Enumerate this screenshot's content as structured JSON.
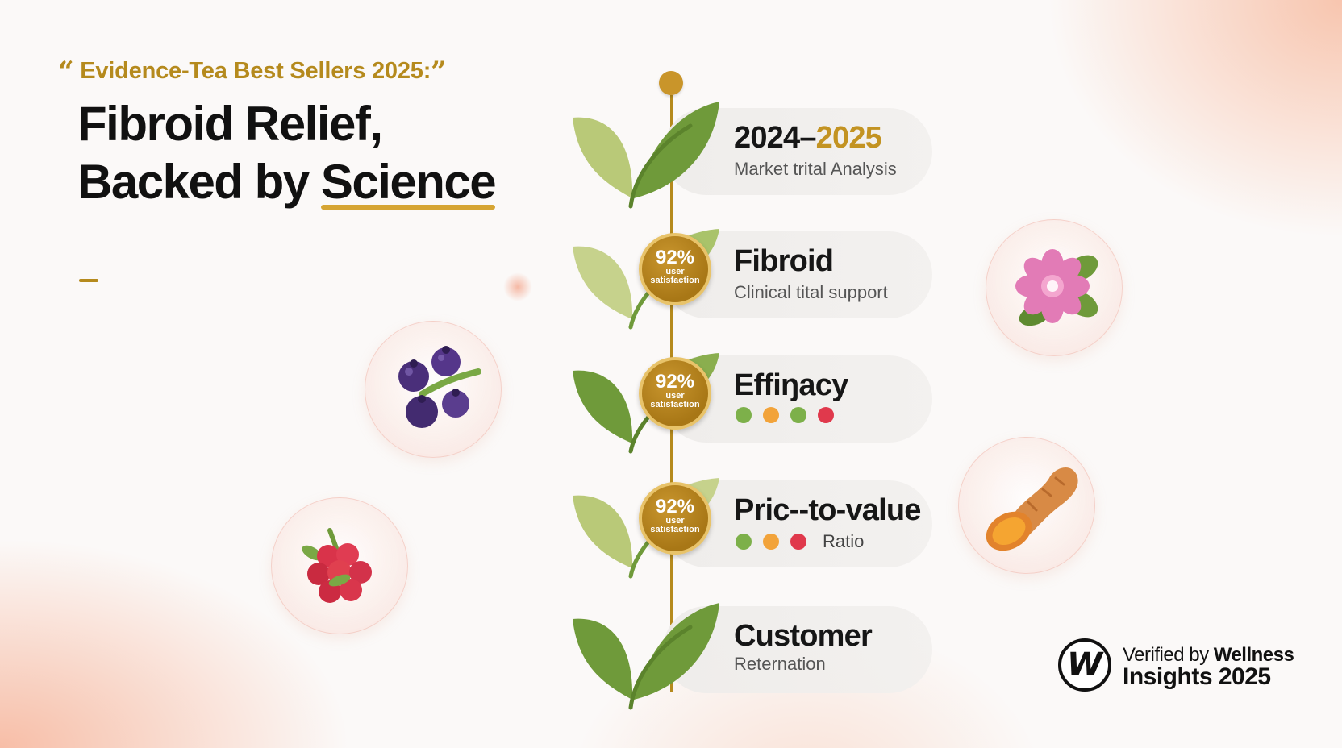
{
  "header": {
    "eyebrow_open_quote": "“",
    "eyebrow": "Evidence-Tea Best Sellers 2025:",
    "eyebrow_close_quote": "”",
    "title_line1": "Fibroid Relief,",
    "title_line2_prefix": "Backed by ",
    "title_line2_highlight": "Science"
  },
  "timeline": {
    "items": [
      {
        "title_main": "2024–",
        "title_accent": "2025",
        "subtitle": "Market trital Analysis"
      },
      {
        "badge_value": "92%",
        "badge_label_1": "user",
        "badge_label_2": "satisfaction",
        "title": "Fibroid",
        "subtitle": "Clinical tital support"
      },
      {
        "badge_value": "92%",
        "badge_label_1": "user",
        "badge_label_2": "satisfaction",
        "title": "Effiŋacy",
        "dots": [
          "#7db04a",
          "#f2a33a",
          "#7db04a",
          "#e0394c"
        ]
      },
      {
        "badge_value": "92%",
        "badge_label_1": "user",
        "badge_label_2": "satisfaction",
        "title": "Pric--to-value",
        "dots": [
          "#7db04a",
          "#f2a33a",
          "#e0394c"
        ],
        "dots_label": "Ratio"
      },
      {
        "title": "Customer",
        "subtitle": "Reternation"
      }
    ]
  },
  "bubbles": [
    "blueberries-icon",
    "raspberry-icon",
    "pink-flower-icon",
    "turmeric-root-icon"
  ],
  "verified": {
    "logo_letter": "W",
    "line1_prefix": "Verified by ",
    "line1_bold": "Wellness",
    "line2": "Insights 2025"
  },
  "colors": {
    "accent_gold": "#b58a1d",
    "leaf_green": "#6f9a3a",
    "leaf_light": "#b9c978"
  }
}
